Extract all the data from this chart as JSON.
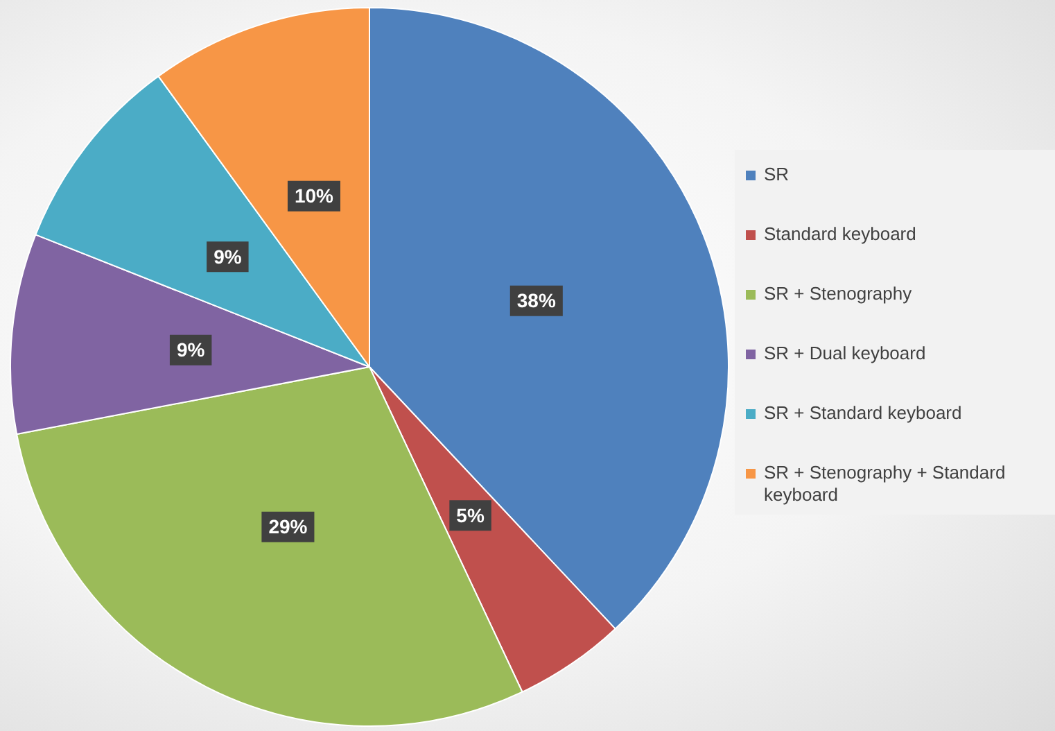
{
  "chart_data": {
    "type": "pie",
    "categories": [
      "SR",
      "Standard keyboard",
      "SR + Stenography",
      "SR + Dual keyboard",
      "SR + Standard keyboard",
      "SR + Stenography + Standard keyboard"
    ],
    "values": [
      38,
      5,
      29,
      9,
      9,
      10
    ],
    "value_labels": [
      "38%",
      "5%",
      "29%",
      "9%",
      "9%",
      "10%"
    ],
    "colors": [
      "#4f81bd",
      "#c0504d",
      "#9bbb59",
      "#8064a2",
      "#4bacc6",
      "#f79646"
    ],
    "legend": "right"
  }
}
